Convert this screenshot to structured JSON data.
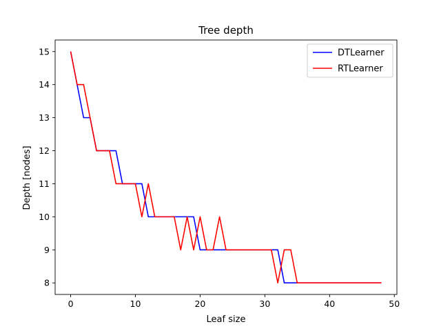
{
  "chart_data": {
    "type": "line",
    "title": "Tree depth",
    "xlabel": "Leaf size",
    "ylabel": "Depth [nodes]",
    "xlim": [
      -2.4,
      50.4
    ],
    "ylim": [
      7.65,
      15.35
    ],
    "xticks": [
      0,
      10,
      20,
      30,
      40,
      50
    ],
    "yticks": [
      8,
      9,
      10,
      11,
      12,
      13,
      14,
      15
    ],
    "legend_position": "top-right",
    "grid": false,
    "x": [
      0,
      1,
      2,
      3,
      4,
      5,
      6,
      7,
      8,
      9,
      10,
      11,
      12,
      13,
      14,
      15,
      16,
      17,
      18,
      19,
      20,
      21,
      22,
      23,
      24,
      25,
      26,
      27,
      28,
      29,
      30,
      31,
      32,
      33,
      34,
      35,
      36,
      37,
      38,
      39,
      40,
      41,
      42,
      43,
      44,
      45,
      46,
      47,
      48
    ],
    "series": [
      {
        "name": "DTLearner",
        "color": "#0000ff",
        "values": [
          15,
          14,
          13,
          13,
          12,
          12,
          12,
          12,
          11,
          11,
          11,
          11,
          10,
          10,
          10,
          10,
          10,
          10,
          10,
          10,
          9,
          9,
          9,
          9,
          9,
          9,
          9,
          9,
          9,
          9,
          9,
          9,
          9,
          8,
          8,
          8,
          8,
          8,
          8,
          8,
          8,
          8,
          8,
          8,
          8,
          8,
          8,
          8,
          8
        ]
      },
      {
        "name": "RTLearner",
        "color": "#ff0000",
        "values": [
          15,
          14,
          14,
          13,
          12,
          12,
          12,
          11,
          11,
          11,
          11,
          10,
          11,
          10,
          10,
          10,
          10,
          9,
          10,
          9,
          10,
          9,
          9,
          10,
          9,
          9,
          9,
          9,
          9,
          9,
          9,
          9,
          8,
          9,
          9,
          8,
          8,
          8,
          8,
          8,
          8,
          8,
          8,
          8,
          8,
          8,
          8,
          8,
          8
        ]
      }
    ]
  }
}
